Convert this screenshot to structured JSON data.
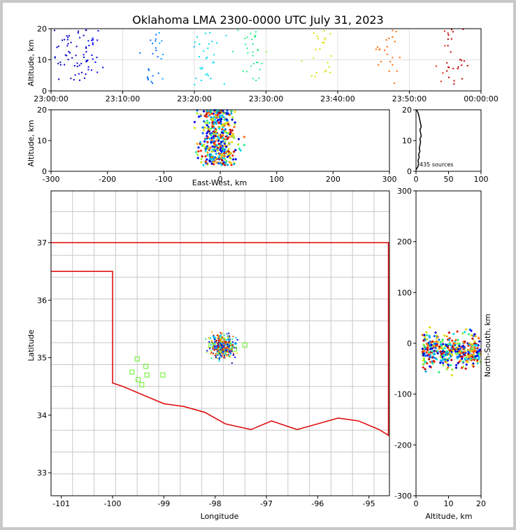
{
  "chart_data": [
    {
      "panel": "altitude-vs-time",
      "type": "scatter",
      "title": "Oklahoma LMA 2300-0000 UTC July 31, 2023",
      "ylabel": "Altitude, km",
      "ylim": [
        0,
        20
      ],
      "yticks": [
        "0",
        "10",
        "20"
      ],
      "xticks": [
        "23:00:00",
        "23:10:00",
        "23:20:00",
        "23:30:00",
        "23:40:00",
        "23:50:00",
        "00:00:00"
      ],
      "xlim_minutes": [
        0,
        60
      ],
      "grid": true,
      "color_encoding": "time (blue to red)"
    },
    {
      "panel": "altitude-vs-east-west",
      "type": "scatter",
      "xlabel": "East-West, km",
      "ylabel": "Altitude, km",
      "xlim": [
        -300,
        300
      ],
      "ylim": [
        0,
        20
      ],
      "xticks": [
        "-300",
        "-200",
        "-100",
        "0",
        "100",
        "200",
        "300"
      ],
      "yticks": [
        "0",
        "10",
        "20"
      ]
    },
    {
      "panel": "altitude-histogram",
      "type": "line",
      "annotation": "435 sources",
      "xlim": [
        0,
        100
      ],
      "ylim": [
        0,
        20
      ],
      "xticks": [
        "0",
        "50",
        "100"
      ],
      "yticks": [
        "0",
        "10",
        "20"
      ],
      "profile": [
        [
          0,
          0.5
        ],
        [
          3,
          1.5
        ],
        [
          4,
          2.5
        ],
        [
          3,
          3.5
        ],
        [
          5,
          4.5
        ],
        [
          4,
          5.5
        ],
        [
          6,
          6.5
        ],
        [
          5,
          7.5
        ],
        [
          6,
          8.5
        ],
        [
          7,
          9.5
        ],
        [
          6,
          10.5
        ],
        [
          8,
          11.5
        ],
        [
          7,
          12.5
        ],
        [
          6,
          13.5
        ],
        [
          8,
          14.5
        ],
        [
          7,
          15.5
        ],
        [
          6,
          16.5
        ],
        [
          5,
          17.5
        ],
        [
          4,
          18.5
        ],
        [
          2,
          19.5
        ],
        [
          0,
          20
        ]
      ]
    },
    {
      "panel": "plan-view-map",
      "type": "scatter",
      "xlabel": "Longitude",
      "ylabel": "Latitude",
      "xlim": [
        -101.2,
        -94.6
      ],
      "ylim": [
        32.6,
        37.9
      ],
      "xticks": [
        "-101",
        "-100",
        "-99",
        "-98",
        "-97",
        "-96",
        "-95"
      ],
      "yticks": [
        "33",
        "34",
        "35",
        "36",
        "37"
      ],
      "state_border_color": "#e00000",
      "county_line_color": "#c8c8c8",
      "station_color": "#66ee22",
      "stations": [
        [
          -99.52,
          34.98
        ],
        [
          -99.35,
          34.85
        ],
        [
          -99.62,
          34.75
        ],
        [
          -99.33,
          34.7
        ],
        [
          -99.5,
          34.62
        ],
        [
          -99.43,
          34.53
        ],
        [
          -99.02,
          34.7
        ],
        [
          -98.08,
          35.22
        ],
        [
          -97.62,
          35.15
        ],
        [
          -97.42,
          35.22
        ]
      ]
    },
    {
      "panel": "north-south-vs-altitude",
      "type": "scatter",
      "xlabel": "Altitude, km",
      "ylabel": "North-South, km",
      "xlim": [
        0,
        20
      ],
      "ylim": [
        -300,
        300
      ],
      "xticks": [
        "0",
        "10",
        "20"
      ],
      "yticks": [
        "-300",
        "-200",
        "-100",
        "0",
        "100",
        "200",
        "300"
      ]
    }
  ]
}
